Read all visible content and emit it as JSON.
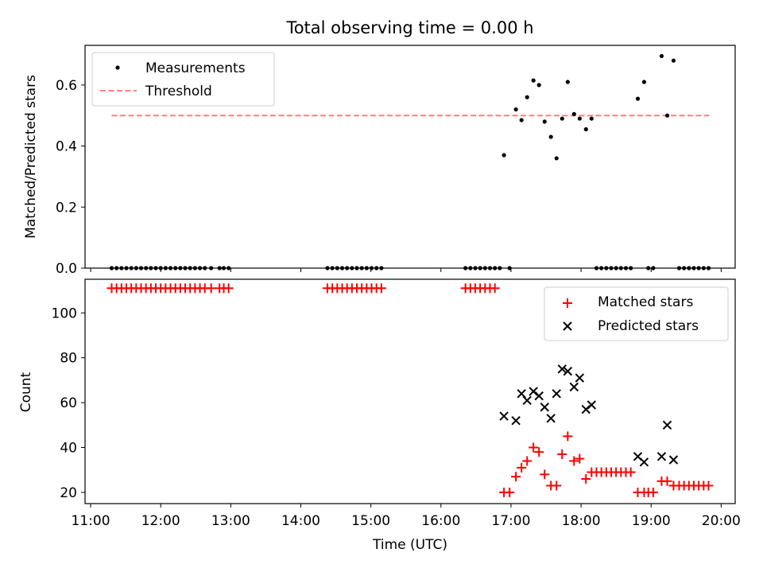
{
  "title": "Total observing time = 0.00 h",
  "chart_data": [
    {
      "type": "scatter",
      "ylabel": "Matched/Predicted stars",
      "xlim": [
        10.92,
        20.2
      ],
      "ylim": [
        0,
        0.73
      ],
      "yticks": [
        0.0,
        0.2,
        0.4,
        0.6
      ],
      "ytick_labels": [
        "0.0",
        "0.2",
        "0.4",
        "0.6"
      ],
      "grid": false,
      "legend": "top-left",
      "legend_entries": [
        "Measurements",
        "Threshold"
      ],
      "threshold": {
        "name": "Threshold",
        "y": 0.5,
        "x_range": [
          11.3,
          19.83
        ],
        "color": "#ff7f7f"
      },
      "series": [
        {
          "name": "Measurements",
          "color": "#000000",
          "points": [
            [
              11.3,
              0
            ],
            [
              11.37,
              0
            ],
            [
              11.44,
              0
            ],
            [
              11.51,
              0
            ],
            [
              11.58,
              0
            ],
            [
              11.65,
              0
            ],
            [
              11.72,
              0
            ],
            [
              11.79,
              0
            ],
            [
              11.86,
              0
            ],
            [
              11.93,
              0
            ],
            [
              12.0,
              0
            ],
            [
              12.07,
              0
            ],
            [
              12.14,
              0
            ],
            [
              12.21,
              0
            ],
            [
              12.28,
              0
            ],
            [
              12.35,
              0
            ],
            [
              12.42,
              0
            ],
            [
              12.49,
              0
            ],
            [
              12.56,
              0
            ],
            [
              12.63,
              0
            ],
            [
              12.72,
              0
            ],
            [
              12.84,
              0
            ],
            [
              12.9,
              0
            ],
            [
              12.97,
              0
            ],
            [
              14.38,
              0
            ],
            [
              14.45,
              0
            ],
            [
              14.52,
              0
            ],
            [
              14.59,
              0
            ],
            [
              14.66,
              0
            ],
            [
              14.73,
              0
            ],
            [
              14.8,
              0
            ],
            [
              14.87,
              0
            ],
            [
              14.94,
              0
            ],
            [
              15.01,
              0
            ],
            [
              15.08,
              0
            ],
            [
              15.15,
              0
            ],
            [
              16.35,
              0
            ],
            [
              16.42,
              0
            ],
            [
              16.49,
              0
            ],
            [
              16.56,
              0
            ],
            [
              16.63,
              0
            ],
            [
              16.7,
              0
            ],
            [
              16.77,
              0
            ],
            [
              16.84,
              0
            ],
            [
              16.98,
              0
            ],
            [
              16.9,
              0.37
            ],
            [
              17.07,
              0.52
            ],
            [
              17.15,
              0.485
            ],
            [
              17.23,
              0.56
            ],
            [
              17.32,
              0.615
            ],
            [
              17.4,
              0.6
            ],
            [
              17.48,
              0.48
            ],
            [
              17.57,
              0.43
            ],
            [
              17.65,
              0.36
            ],
            [
              17.73,
              0.49
            ],
            [
              17.81,
              0.61
            ],
            [
              17.9,
              0.505
            ],
            [
              17.98,
              0.49
            ],
            [
              18.07,
              0.455
            ],
            [
              18.15,
              0.49
            ],
            [
              18.22,
              0
            ],
            [
              18.29,
              0
            ],
            [
              18.36,
              0
            ],
            [
              18.43,
              0
            ],
            [
              18.5,
              0
            ],
            [
              18.57,
              0
            ],
            [
              18.64,
              0
            ],
            [
              18.71,
              0
            ],
            [
              18.96,
              0
            ],
            [
              19.03,
              0
            ],
            [
              18.81,
              0.555
            ],
            [
              18.9,
              0.61
            ],
            [
              19.15,
              0.695
            ],
            [
              19.23,
              0.5
            ],
            [
              19.32,
              0.68
            ],
            [
              19.4,
              0
            ],
            [
              19.47,
              0
            ],
            [
              19.54,
              0
            ],
            [
              19.61,
              0
            ],
            [
              19.68,
              0
            ],
            [
              19.75,
              0
            ],
            [
              19.82,
              0
            ]
          ]
        }
      ]
    },
    {
      "type": "scatter",
      "xlabel": "Time (UTC)",
      "ylabel": "Count",
      "xlim": [
        10.92,
        20.2
      ],
      "ylim": [
        15,
        115
      ],
      "xticks": [
        11,
        12,
        13,
        14,
        15,
        16,
        17,
        18,
        19,
        20
      ],
      "xtick_labels": [
        "11:00",
        "12:00",
        "13:00",
        "14:00",
        "15:00",
        "16:00",
        "17:00",
        "18:00",
        "19:00",
        "20:00"
      ],
      "yticks": [
        20,
        40,
        60,
        80,
        100
      ],
      "ytick_labels": [
        "20",
        "40",
        "60",
        "80",
        "100"
      ],
      "grid": false,
      "legend": "top-right",
      "legend_entries": [
        "Matched stars",
        "Predicted stars"
      ],
      "series": [
        {
          "name": "Matched stars",
          "marker": "plus",
          "color": "#ff0000",
          "points": [
            [
              11.3,
              111
            ],
            [
              11.37,
              111
            ],
            [
              11.44,
              111
            ],
            [
              11.51,
              111
            ],
            [
              11.58,
              111
            ],
            [
              11.65,
              111
            ],
            [
              11.72,
              111
            ],
            [
              11.79,
              111
            ],
            [
              11.86,
              111
            ],
            [
              11.93,
              111
            ],
            [
              12.0,
              111
            ],
            [
              12.07,
              111
            ],
            [
              12.14,
              111
            ],
            [
              12.21,
              111
            ],
            [
              12.28,
              111
            ],
            [
              12.35,
              111
            ],
            [
              12.42,
              111
            ],
            [
              12.49,
              111
            ],
            [
              12.56,
              111
            ],
            [
              12.63,
              111
            ],
            [
              12.72,
              111
            ],
            [
              12.84,
              111
            ],
            [
              12.9,
              111
            ],
            [
              12.97,
              111
            ],
            [
              14.38,
              111
            ],
            [
              14.45,
              111
            ],
            [
              14.52,
              111
            ],
            [
              14.59,
              111
            ],
            [
              14.66,
              111
            ],
            [
              14.73,
              111
            ],
            [
              14.8,
              111
            ],
            [
              14.87,
              111
            ],
            [
              14.94,
              111
            ],
            [
              15.01,
              111
            ],
            [
              15.08,
              111
            ],
            [
              15.15,
              111
            ],
            [
              16.35,
              111
            ],
            [
              16.42,
              111
            ],
            [
              16.49,
              111
            ],
            [
              16.56,
              111
            ],
            [
              16.63,
              111
            ],
            [
              16.7,
              111
            ],
            [
              16.77,
              111
            ],
            [
              16.9,
              20
            ],
            [
              16.98,
              20
            ],
            [
              17.07,
              27
            ],
            [
              17.15,
              31
            ],
            [
              17.23,
              34
            ],
            [
              17.32,
              40
            ],
            [
              17.4,
              38
            ],
            [
              17.48,
              28
            ],
            [
              17.57,
              23
            ],
            [
              17.65,
              23
            ],
            [
              17.73,
              37
            ],
            [
              17.81,
              45
            ],
            [
              17.9,
              34
            ],
            [
              17.98,
              35
            ],
            [
              18.07,
              26
            ],
            [
              18.15,
              29
            ],
            [
              18.22,
              29
            ],
            [
              18.29,
              29
            ],
            [
              18.36,
              29
            ],
            [
              18.43,
              29
            ],
            [
              18.5,
              29
            ],
            [
              18.57,
              29
            ],
            [
              18.64,
              29
            ],
            [
              18.71,
              29
            ],
            [
              18.81,
              20
            ],
            [
              18.9,
              20
            ],
            [
              18.96,
              20
            ],
            [
              19.03,
              20
            ],
            [
              19.15,
              25
            ],
            [
              19.23,
              25
            ],
            [
              19.32,
              23
            ],
            [
              19.4,
              23
            ],
            [
              19.47,
              23
            ],
            [
              19.54,
              23
            ],
            [
              19.61,
              23
            ],
            [
              19.68,
              23
            ],
            [
              19.75,
              23
            ],
            [
              19.82,
              23
            ]
          ]
        },
        {
          "name": "Predicted stars",
          "marker": "x",
          "color": "#000000",
          "points": [
            [
              16.9,
              54
            ],
            [
              17.07,
              52
            ],
            [
              17.15,
              64
            ],
            [
              17.23,
              61
            ],
            [
              17.32,
              65
            ],
            [
              17.4,
              63
            ],
            [
              17.48,
              58
            ],
            [
              17.57,
              53
            ],
            [
              17.65,
              64
            ],
            [
              17.73,
              75
            ],
            [
              17.81,
              74
            ],
            [
              17.9,
              67
            ],
            [
              17.98,
              71
            ],
            [
              18.07,
              57
            ],
            [
              18.15,
              59
            ],
            [
              18.81,
              36
            ],
            [
              18.9,
              33.5
            ],
            [
              19.15,
              36
            ],
            [
              19.23,
              50
            ],
            [
              19.32,
              34.5
            ]
          ]
        }
      ]
    }
  ]
}
